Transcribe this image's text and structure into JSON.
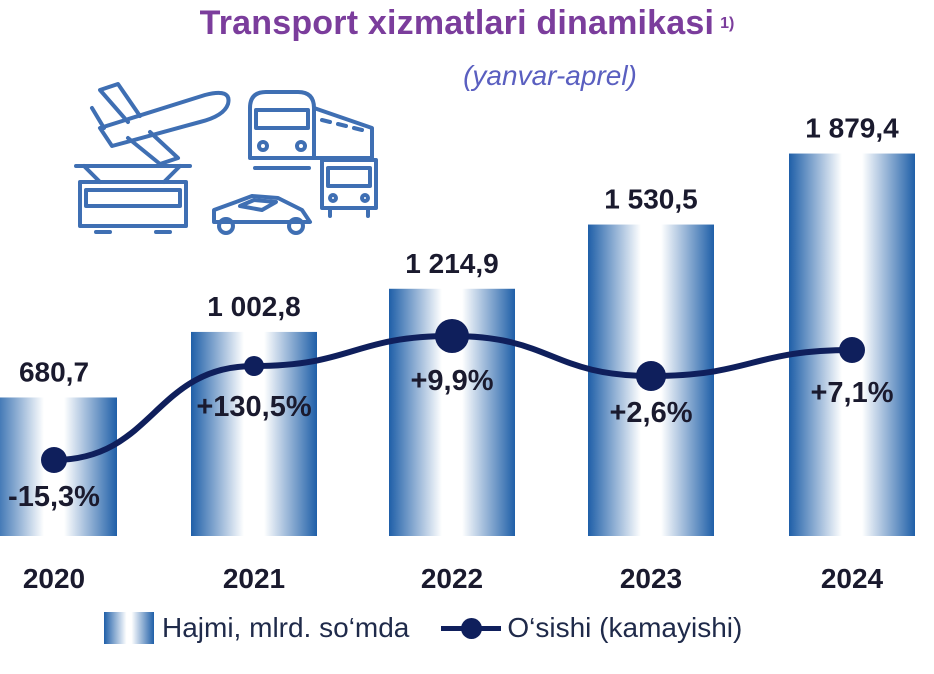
{
  "title": "Transport xizmatlari dinamikasi",
  "title_note": "1)",
  "subtitle": "(yanvar-aprel)",
  "colors": {
    "bar": "#1f5fa8",
    "line": "#0f1f5c",
    "title": "#7b3d9c",
    "subtitle": "#5a5fc0",
    "icons": "#3f6fb3"
  },
  "icons": [
    "airplane-icon",
    "train-icon",
    "tram-icon",
    "bus-icon",
    "car-icon"
  ],
  "chart_data": {
    "type": "bar",
    "categories": [
      "2020",
      "2021",
      "2022",
      "2023",
      "2024"
    ],
    "series": [
      {
        "name": "Hajmi, mlrd. so‘mda",
        "type": "bar",
        "values": [
          680.7,
          1002.8,
          1214.9,
          1530.5,
          1879.4
        ],
        "labels": [
          "680,7",
          "1 002,8",
          "1 214,9",
          "1 530,5",
          "1 879,4"
        ]
      },
      {
        "name": "O‘sishi (kamayishi)",
        "type": "line",
        "values": [
          -15.3,
          130.5,
          9.9,
          2.6,
          7.1
        ],
        "labels": [
          "-15,3%",
          "+130,5%",
          "+9,9%",
          "+2,6%",
          "+7,1%"
        ]
      }
    ],
    "legend_position": "bottom",
    "grid": false
  }
}
